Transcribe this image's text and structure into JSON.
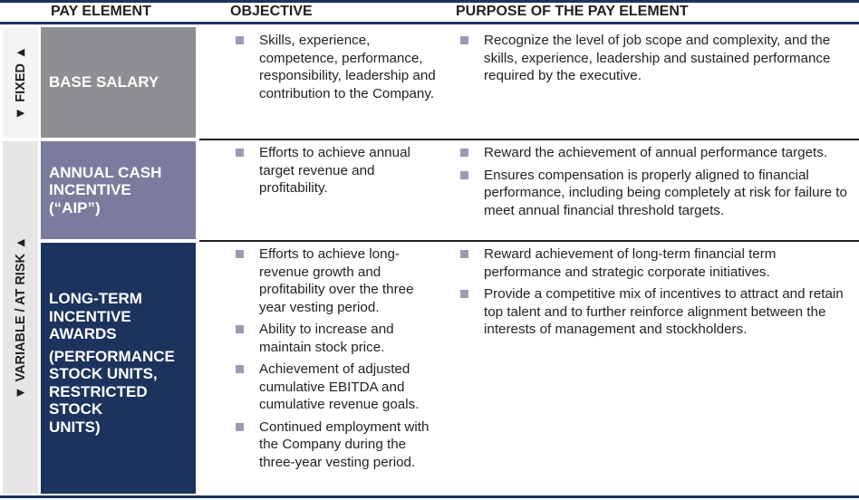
{
  "header": {
    "pay_element": "PAY ELEMENT",
    "objective": "OBJECTIVE",
    "purpose": "PURPOSE OF THE PAY ELEMENT"
  },
  "sides": {
    "fixed": "◄ FIXED ►",
    "variable": "◄ VARIABLE / AT RISK ►"
  },
  "colors": {
    "navy": "#1c335e",
    "base_salary": "#8e8f92",
    "aip": "#7b7b9d",
    "lti": "#1c335e",
    "bullet": "#9b9bb3"
  },
  "rows": [
    {
      "element": "BASE SALARY",
      "objectives": [
        "Skills, experience, competence, performance, responsibility, leadership and contribution to the Company."
      ],
      "purposes": [
        "Recognize the level of job scope and complexity, and the skills, experience, leadership and sustained performance required by the executive."
      ]
    },
    {
      "element": "ANNUAL CASH\nINCENTIVE\n(“AIP”)",
      "objectives": [
        "Efforts to achieve annual target revenue and profitability."
      ],
      "purposes": [
        "Reward the achievement of annual performance targets.",
        "Ensures compensation is properly aligned to financial performance, including being completely at risk for failure to meet annual financial threshold targets."
      ]
    },
    {
      "element": "LONG-TERM\nINCENTIVE\nAWARDS",
      "element_sub": "(PERFORMANCE\nSTOCK UNITS,\nRESTRICTED\nSTOCK\nUNITS)",
      "objectives": [
        "Efforts to achieve long-revenue growth and profitability over the three year vesting period.",
        "Ability to increase and maintain stock price.",
        "Achievement of adjusted cumulative EBITDA and cumulative revenue goals.",
        "Continued employment with the Company during the three-year vesting period."
      ],
      "purposes": [
        "Reward achievement of long-term financial term performance and strategic corporate initiatives.",
        "Provide a competitive mix of incentives to attract and retain top talent and to further reinforce alignment between the interests of management and stockholders."
      ]
    }
  ]
}
